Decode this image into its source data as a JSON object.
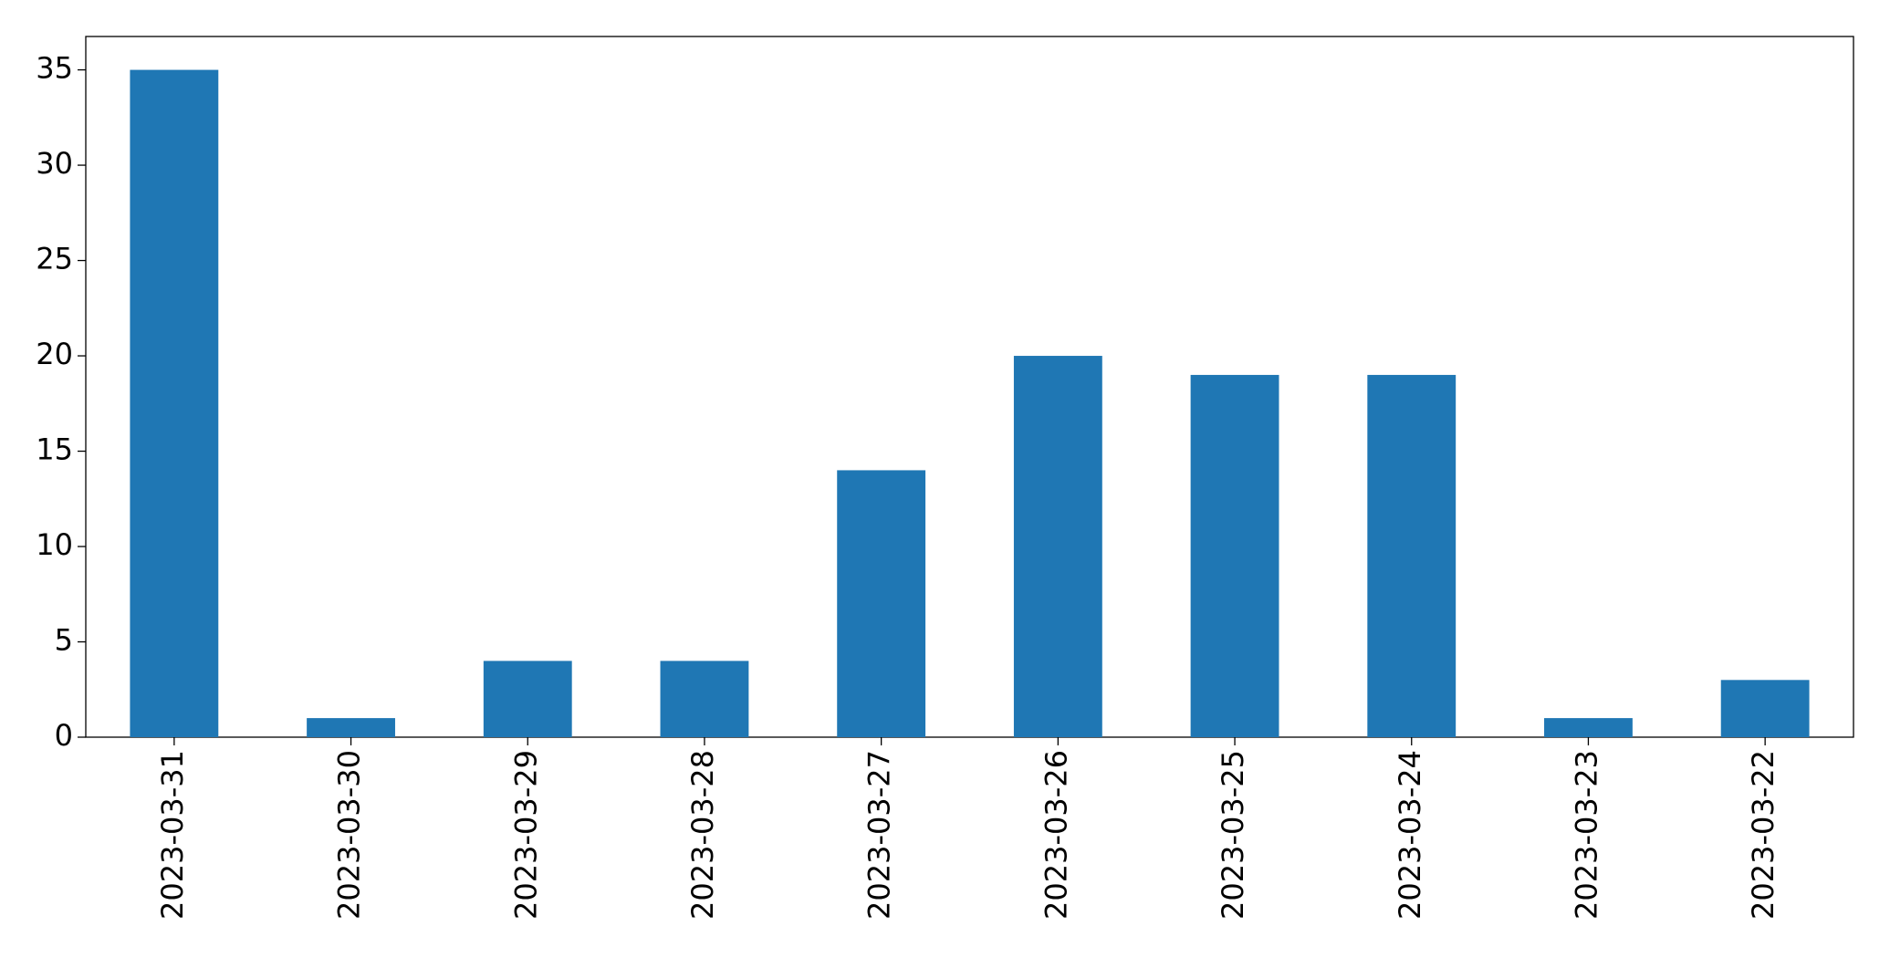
{
  "chart_data": {
    "type": "bar",
    "categories": [
      "2023-03-31",
      "2023-03-30",
      "2023-03-29",
      "2023-03-28",
      "2023-03-27",
      "2023-03-26",
      "2023-03-25",
      "2023-03-24",
      "2023-03-23",
      "2023-03-22"
    ],
    "values": [
      35,
      1,
      4,
      4,
      14,
      20,
      19,
      19,
      1,
      3
    ],
    "color": "#1f77b4",
    "ylim": [
      0,
      36.75
    ],
    "yticks": [
      0,
      5,
      10,
      15,
      20,
      25,
      30,
      35
    ],
    "grid": false
  }
}
